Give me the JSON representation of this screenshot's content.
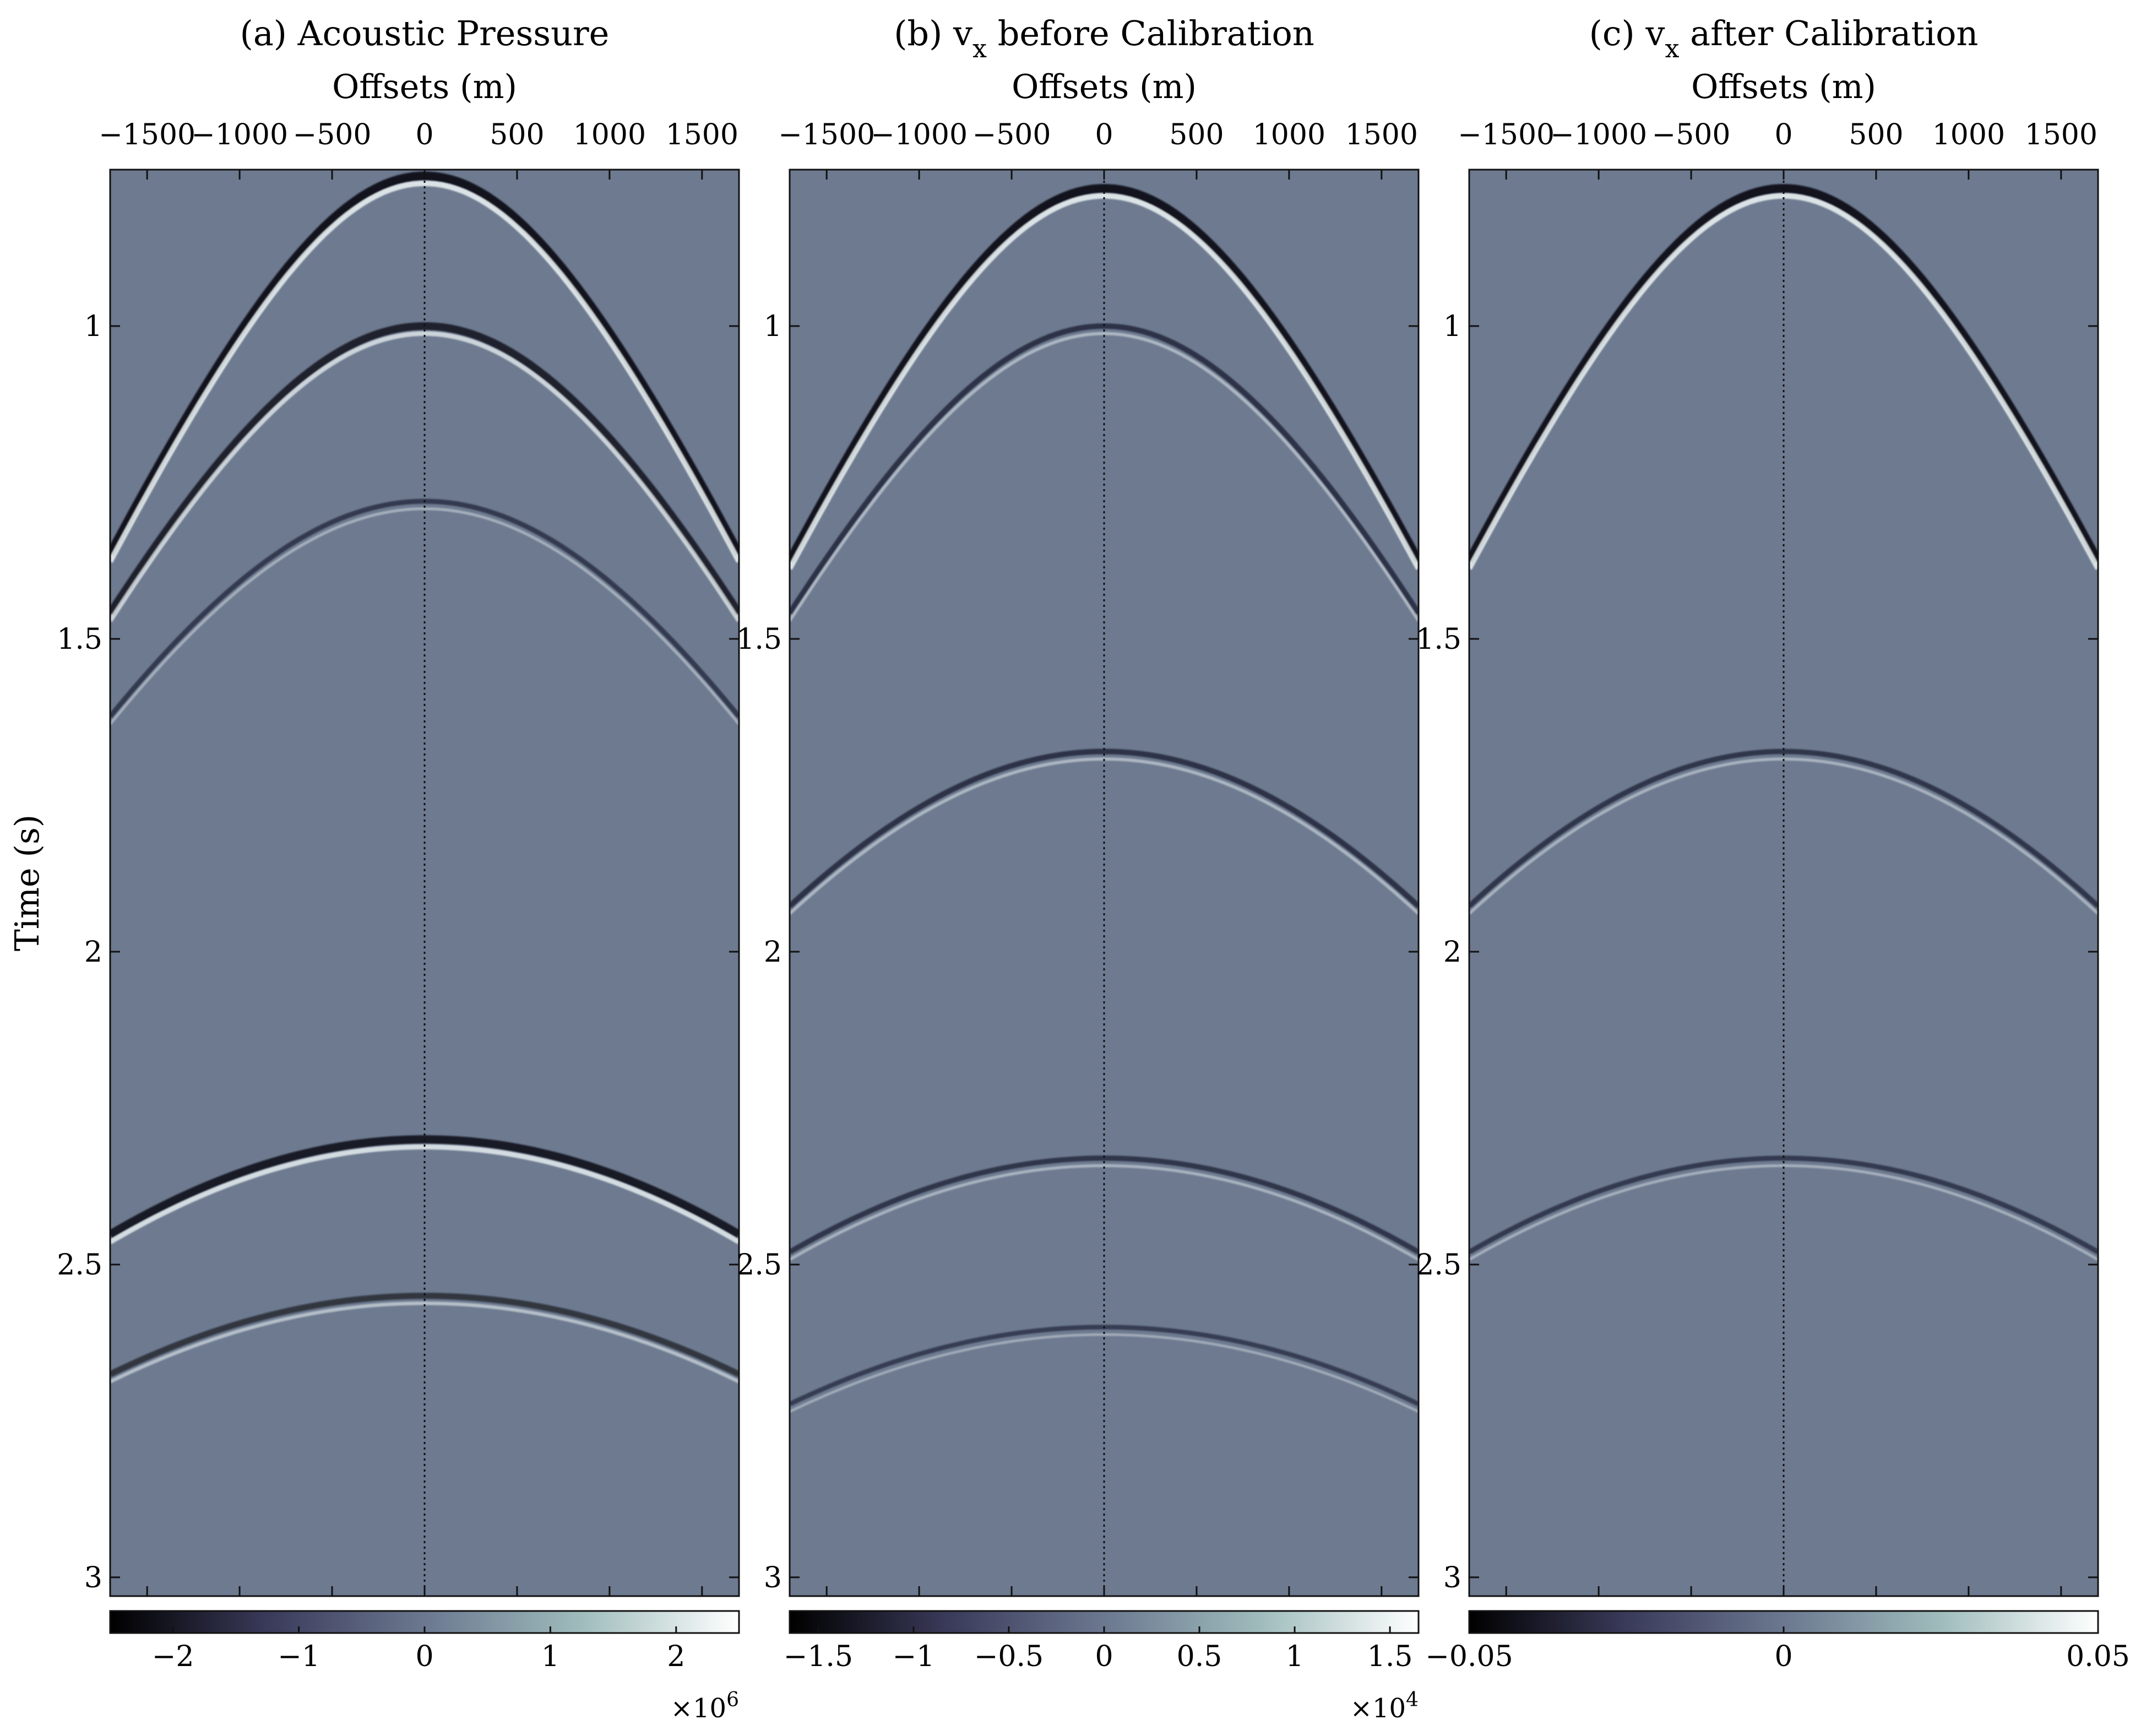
{
  "figure": {
    "y_label": "Time (s)"
  },
  "chart_data": [
    {
      "type": "heatmap",
      "title_prefix": "(a) Acoustic Pressure",
      "title_sub": "",
      "title_suffix": "",
      "xlabel": "Offsets (m)",
      "ylabel": "Time (s)",
      "x_ticks": [
        -1500,
        -1000,
        -500,
        0,
        500,
        1000,
        1500
      ],
      "x_tick_labels": [
        "−1500",
        "−1000",
        "−500",
        "0",
        "500",
        "1000",
        "1500"
      ],
      "xlim": [
        -1700,
        1700
      ],
      "y_ticks": [
        1,
        1.5,
        2,
        2.5,
        3
      ],
      "y_tick_labels": [
        "1",
        "1.5",
        "2",
        "2.5",
        "3"
      ],
      "ylim": [
        0.75,
        3.03
      ],
      "colorbar": {
        "range": [
          -2.5,
          2.5
        ],
        "ticks": [
          -2,
          -1,
          0,
          1,
          2
        ],
        "tick_labels": [
          "−2",
          "−1",
          "0",
          "1",
          "2"
        ],
        "multiplier_base": "×10",
        "multiplier_exp": "6"
      },
      "events": [
        {
          "apex_time": 0.76,
          "velocity": 1500,
          "amplitude": 1.0
        },
        {
          "apex_time": 1.0,
          "velocity": 1600,
          "amplitude": 0.8
        },
        {
          "apex_time": 1.28,
          "velocity": 1700,
          "amplitude": 0.3
        },
        {
          "apex_time": 2.3,
          "velocity": 2000,
          "amplitude": 0.9
        },
        {
          "apex_time": 2.55,
          "velocity": 2100,
          "amplitude": 0.5
        }
      ]
    },
    {
      "type": "heatmap",
      "title_prefix": "(b) v",
      "title_sub": "x",
      "title_suffix": " before Calibration",
      "xlabel": "Offsets (m)",
      "ylabel": "",
      "x_ticks": [
        -1500,
        -1000,
        -500,
        0,
        500,
        1000,
        1500
      ],
      "x_tick_labels": [
        "−1500",
        "−1000",
        "−500",
        "0",
        "500",
        "1000",
        "1500"
      ],
      "xlim": [
        -1700,
        1700
      ],
      "y_ticks": [
        1,
        1.5,
        2,
        2.5,
        3
      ],
      "y_tick_labels": [
        "1",
        "1.5",
        "2",
        "2.5",
        "3"
      ],
      "ylim": [
        0.75,
        3.03
      ],
      "colorbar": {
        "range": [
          -1.65,
          1.65
        ],
        "ticks": [
          -1.5,
          -1,
          -0.5,
          0,
          0.5,
          1,
          1.5
        ],
        "tick_labels": [
          "−1.5",
          "−1",
          "−0.5",
          "0",
          "0.5",
          "1",
          "1.5"
        ],
        "multiplier_base": "×10",
        "multiplier_exp": "4"
      },
      "events": [
        {
          "apex_time": 0.78,
          "velocity": 1500,
          "amplitude": 1.0
        },
        {
          "apex_time": 1.0,
          "velocity": 1600,
          "amplitude": 0.4
        },
        {
          "apex_time": 1.68,
          "velocity": 1800,
          "amplitude": 0.4
        },
        {
          "apex_time": 2.33,
          "velocity": 2000,
          "amplitude": 0.35
        },
        {
          "apex_time": 2.6,
          "velocity": 2100,
          "amplitude": 0.25
        }
      ]
    },
    {
      "type": "heatmap",
      "title_prefix": "(c) v",
      "title_sub": "x",
      "title_suffix": " after Calibration",
      "xlabel": "Offsets (m)",
      "ylabel": "",
      "x_ticks": [
        -1500,
        -1000,
        -500,
        0,
        500,
        1000,
        1500
      ],
      "x_tick_labels": [
        "−1500",
        "−1000",
        "−500",
        "0",
        "500",
        "1000",
        "1500"
      ],
      "xlim": [
        -1700,
        1700
      ],
      "y_ticks": [
        1,
        1.5,
        2,
        2.5,
        3
      ],
      "y_tick_labels": [
        "1",
        "1.5",
        "2",
        "2.5",
        "3"
      ],
      "ylim": [
        0.75,
        3.03
      ],
      "colorbar": {
        "range": [
          -0.05,
          0.05
        ],
        "ticks": [
          -0.05,
          0,
          0.05
        ],
        "tick_labels": [
          "−0.05",
          "0",
          "0.05"
        ],
        "multiplier_base": "",
        "multiplier_exp": ""
      },
      "events": [
        {
          "apex_time": 0.78,
          "velocity": 1500,
          "amplitude": 1.0
        },
        {
          "apex_time": 1.68,
          "velocity": 1800,
          "amplitude": 0.35
        },
        {
          "apex_time": 2.33,
          "velocity": 2000,
          "amplitude": 0.3
        }
      ]
    }
  ]
}
